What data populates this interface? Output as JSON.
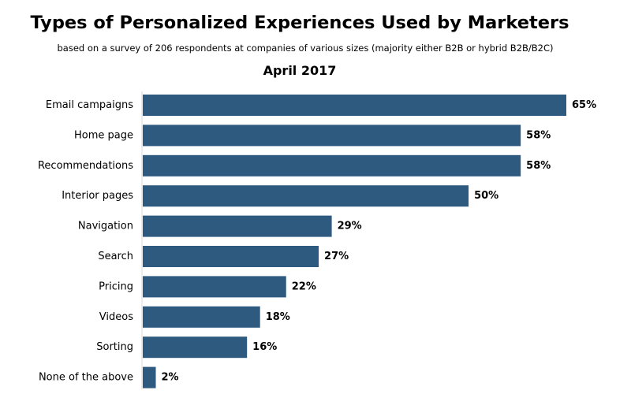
{
  "chart_data": {
    "type": "bar",
    "orientation": "horizontal",
    "title": "Types of Personalized Experiences Used by Marketers",
    "subtitle": "based on a survey of 206 respondents at companies of various sizes (majority either B2B or hybrid B2B/B2C)",
    "date": "April 2017",
    "categories": [
      "Email campaigns",
      "Home page",
      "Recommendations",
      "Interior pages",
      "Navigation",
      "Search",
      "Pricing",
      "Videos",
      "Sorting",
      "None of the above"
    ],
    "values": [
      65,
      58,
      58,
      50,
      29,
      27,
      22,
      18,
      16,
      2
    ],
    "value_labels": [
      "65%",
      "58%",
      "58%",
      "50%",
      "29%",
      "27%",
      "22%",
      "18%",
      "16%",
      "2%"
    ],
    "xlim": [
      0,
      65
    ],
    "grid": false,
    "legend": "none",
    "bar_color": "#2f5a80"
  }
}
